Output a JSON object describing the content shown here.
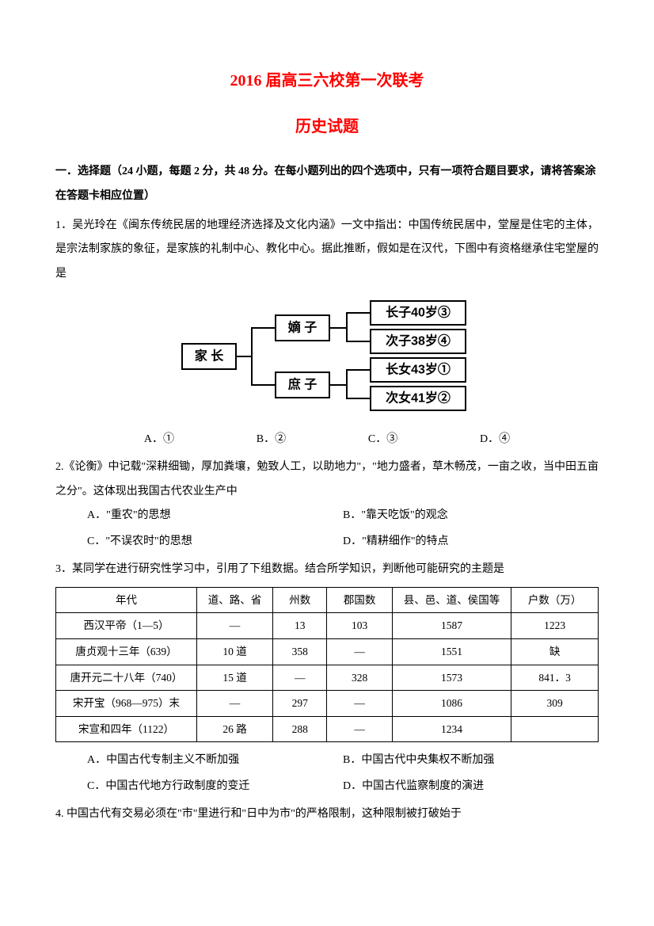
{
  "title_main": "2016 届高三六校第一次联考",
  "title_sub": "历史试题",
  "section_header": "一．选择题（24 小题，每题 2 分，共 48 分。在每小题列出的四个选项中，只有一项符合题目要求，请将答案涂在答题卡相应位置）",
  "q1": {
    "text": "1．吴光玲在《闽东传统民居的地理经济选择及文化内涵》一文中指出：中国传统民居中，堂屋是住宅的主体，是宗法制家族的象征，是家族的礼制中心、教化中心。据此推断，假如是在汉代，下图中有资格继承住宅堂屋的是",
    "opts": [
      "A．①",
      "B．②",
      "C．③",
      "D．④"
    ]
  },
  "diagram": {
    "root": "家 长",
    "mid": [
      "嫡 子",
      "庶 子"
    ],
    "leaves": [
      "长子40岁③",
      "次子38岁④",
      "长女43岁①",
      "次女41岁②"
    ],
    "box_stroke": "#000000",
    "box_fill": "#ffffff",
    "line_stroke": "#000000",
    "font_size": 16
  },
  "q2": {
    "text": "2.《论衡》中记载\"深耕细锄，厚加粪壤，勉致人工，以助地力\"，\"地力盛者，草木畅茂，一亩之收，当中田五亩之分\"。这体现出我国古代农业生产中",
    "opts": [
      "A．\"重农\"的思想",
      "B．\"靠天吃饭\"的观念",
      "C．\"不误农时\"的思想",
      "D．\"精耕细作\"的特点"
    ]
  },
  "q3": {
    "text": "3．某同学在进行研究性学习中，引用了下组数据。结合所学知识，判断他可能研究的主题是",
    "table": {
      "columns": [
        "年代",
        "道、路、省",
        "州数",
        "郡国数",
        "县、邑、道、侯国等",
        "户数（万）"
      ],
      "rows": [
        [
          "西汉平帝（1—5）",
          "—",
          "13",
          "103",
          "1587",
          "1223"
        ],
        [
          "唐贞观十三年（639）",
          "10 道",
          "358",
          "—",
          "1551",
          "缺"
        ],
        [
          "唐开元二十八年（740）",
          "15 道",
          "—",
          "328",
          "1573",
          "841．3"
        ],
        [
          "宋开宝（968—975）末",
          "—",
          "297",
          "—",
          "1086",
          "309"
        ],
        [
          "宋宣和四年（1122）",
          "26 路",
          "288",
          "—",
          "1234",
          ""
        ]
      ]
    },
    "opts": [
      "A．中国古代专制主义不断加强",
      "B．中国古代中央集权不断加强",
      "C．中国古代地方行政制度的变迁",
      "D．中国古代监察制度的演进"
    ]
  },
  "q4": {
    "text": "4. 中国古代有交易必须在\"市\"里进行和\"日中为市\"的严格限制，这种限制被打破始于"
  }
}
